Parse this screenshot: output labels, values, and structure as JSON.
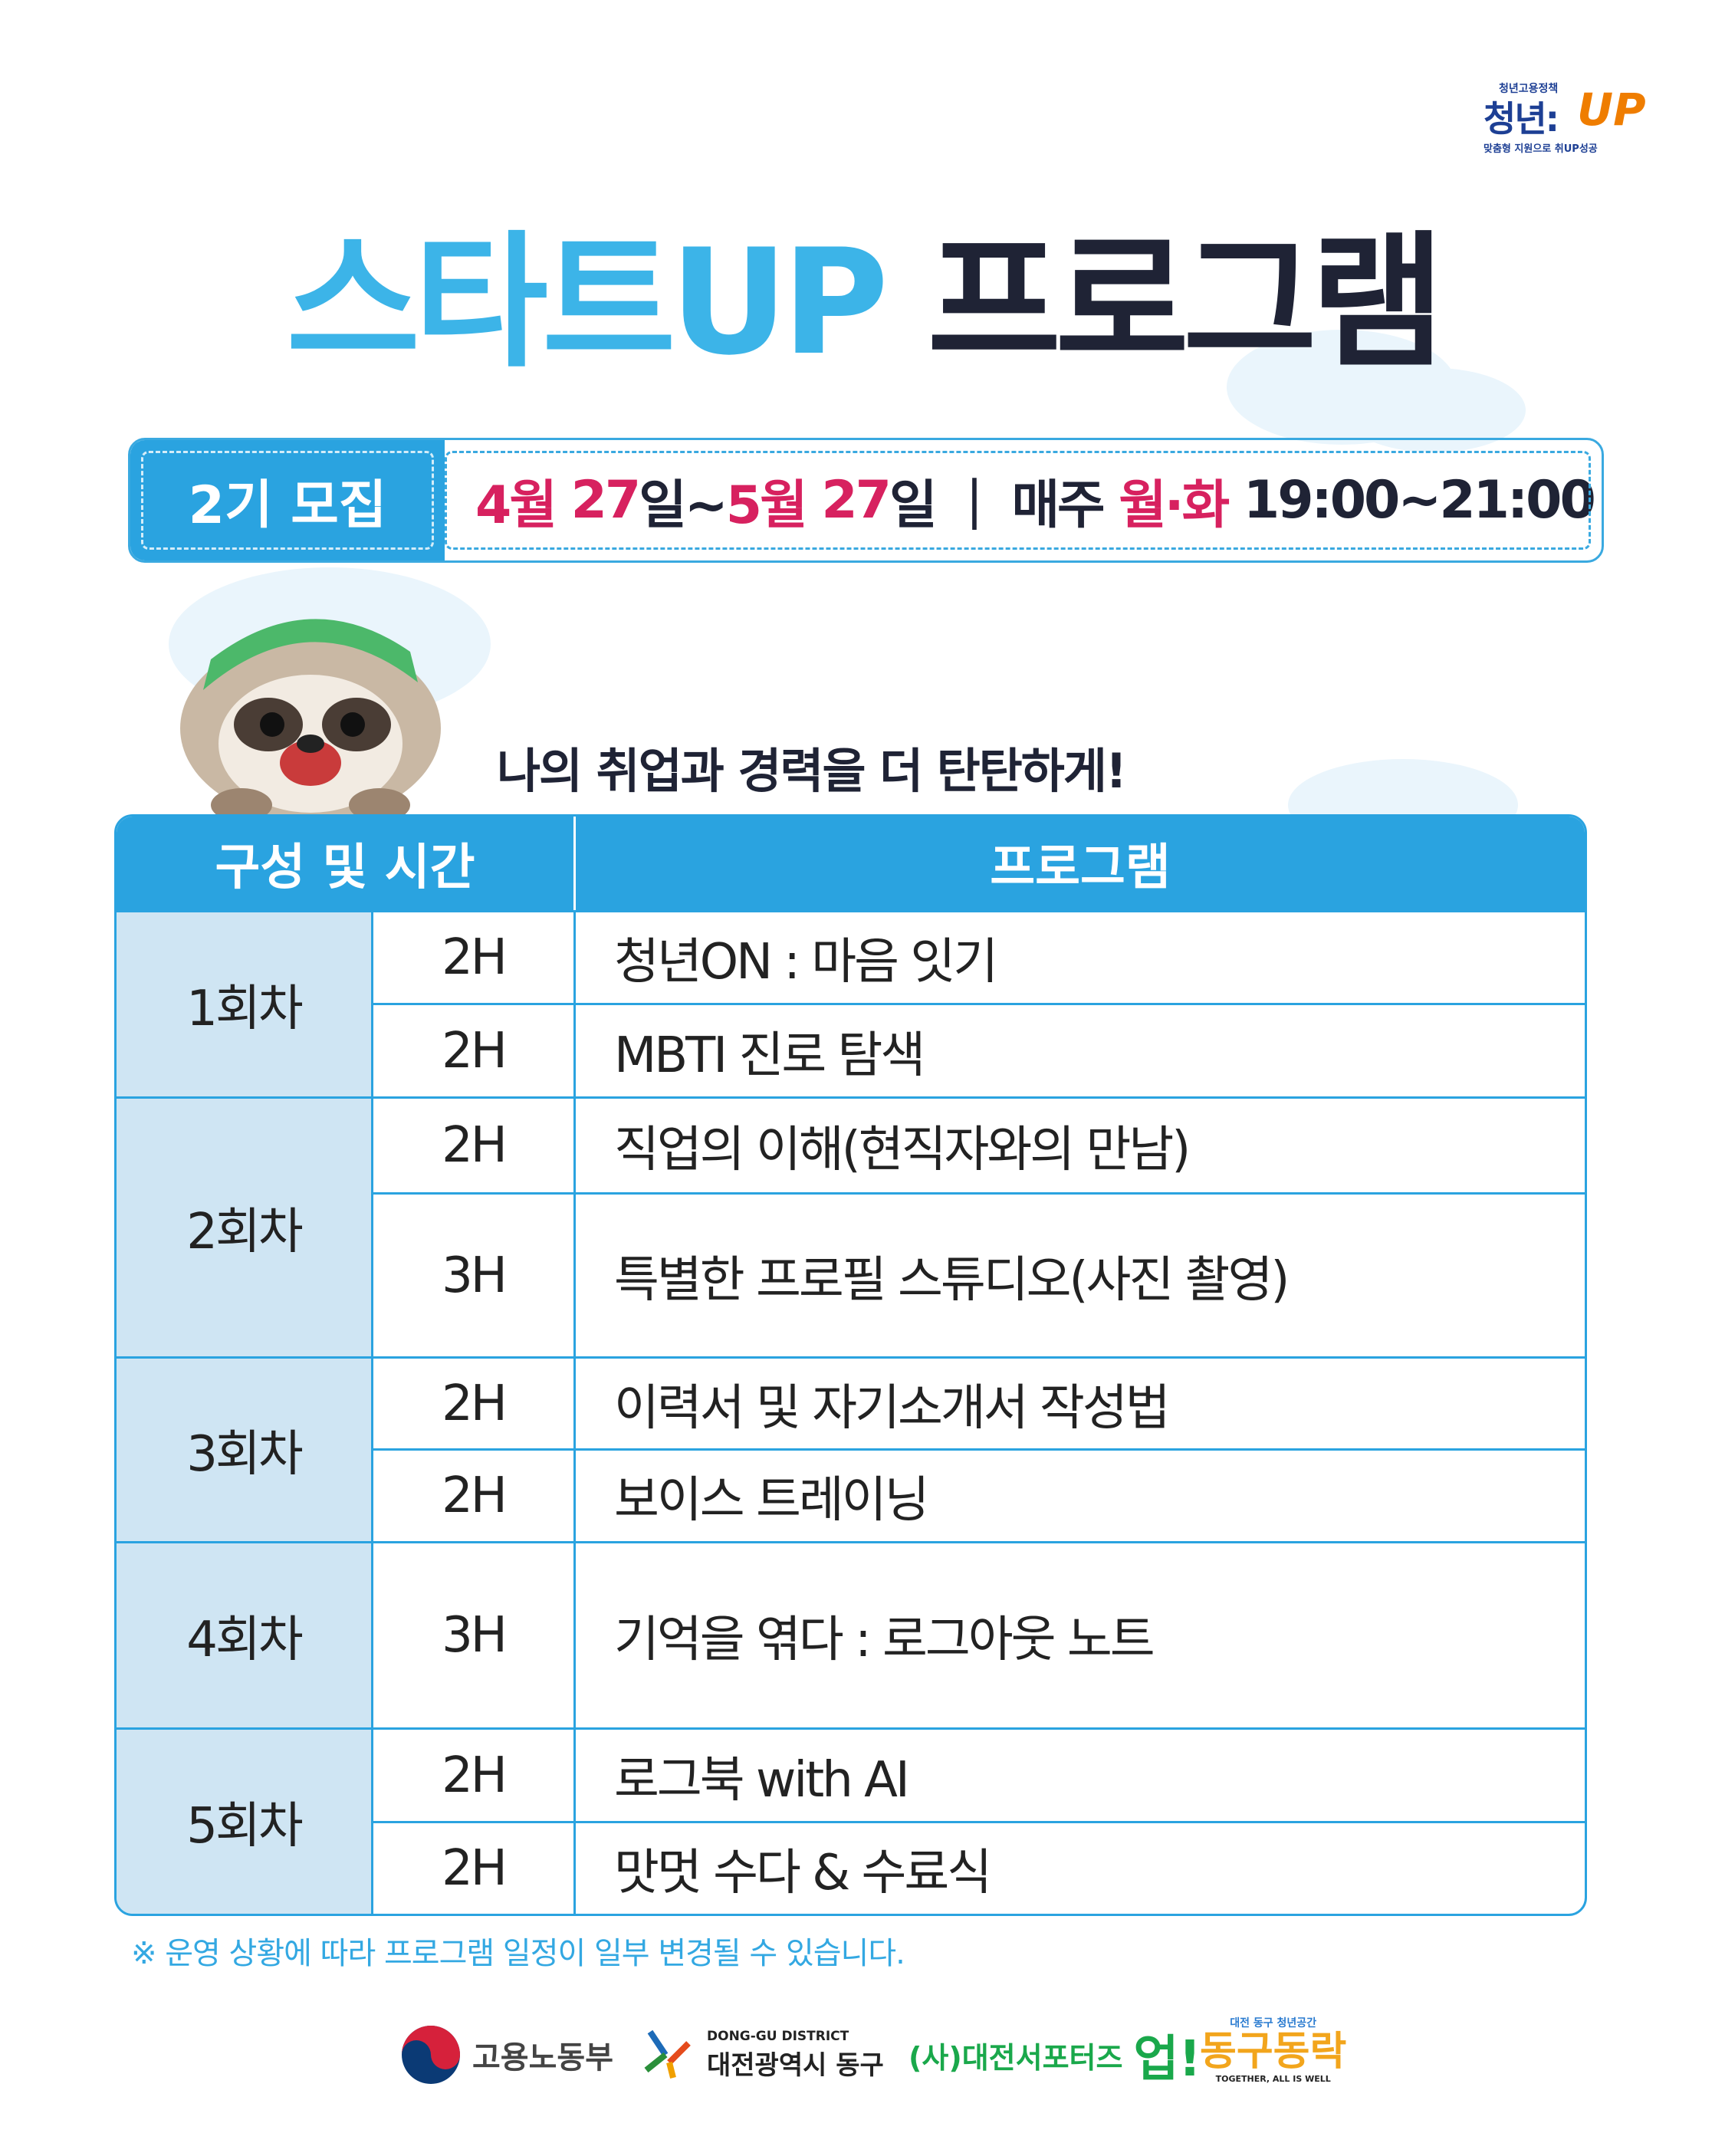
{
  "logo_top": {
    "small": "청년고용정책",
    "main": "청년:",
    "up": "UP",
    "sub": "맞춤형 지원으로 취UP성공"
  },
  "title": {
    "part1": "스타트UP",
    "part2": "프로그램"
  },
  "banner": {
    "badge": "2기 모집",
    "date_start_month": "4월",
    "date_start_day": "27",
    "date_start_unit": "일~",
    "date_end_month": "5월",
    "date_end_day": "27",
    "date_end_unit": "일",
    "separator": "|",
    "weekly": "매주",
    "days": "월·화",
    "time": "19:00~21:00"
  },
  "slogan": "나의 취업과 경력을 더 탄탄하게!",
  "table": {
    "headers": [
      "구성 및 시간",
      "프로그램"
    ],
    "sessions": [
      {
        "label": "1회차",
        "rows": [
          {
            "hours": "2H",
            "program": "청년ON : 마음 잇기"
          },
          {
            "hours": "2H",
            "program": "MBTI 진로 탐색"
          }
        ]
      },
      {
        "label": "2회차",
        "rows": [
          {
            "hours": "2H",
            "program": "직업의 이해(현직자와의 만남)"
          },
          {
            "hours": "3H",
            "program": "특별한 프로필 스튜디오(사진 촬영)"
          }
        ]
      },
      {
        "label": "3회차",
        "rows": [
          {
            "hours": "2H",
            "program": "이력서 및 자기소개서 작성법"
          },
          {
            "hours": "2H",
            "program": "보이스 트레이닝"
          }
        ]
      },
      {
        "label": "4회차",
        "rows": [
          {
            "hours": "3H",
            "program": "기억을 엮다 : 로그아웃 노트"
          }
        ]
      },
      {
        "label": "5회차",
        "rows": [
          {
            "hours": "2H",
            "program": "로그북 with AI"
          },
          {
            "hours": "2H",
            "program": "맛멋 수다 & 수료식"
          }
        ]
      }
    ]
  },
  "note": "※ 운영 상황에 따라 프로그램 일정이 일부 변경될 수 있습니다.",
  "footer_logos": {
    "moel": "고용노동부",
    "donggu_en": "DONG-GU DISTRICT",
    "donggu": "대전광역시 동구",
    "supporters": "(사)대전서포터즈",
    "supporters_up": "업!",
    "dongrak_top": "대전 동구 청년공간",
    "dongrak": "동구동락",
    "dongrak_en": "TOGETHER, ALL IS WELL"
  },
  "colors": {
    "accent": "#2aa3e0",
    "navy": "#1f2335",
    "pink": "#d7215f",
    "session_bg": "#cfe5f3"
  }
}
